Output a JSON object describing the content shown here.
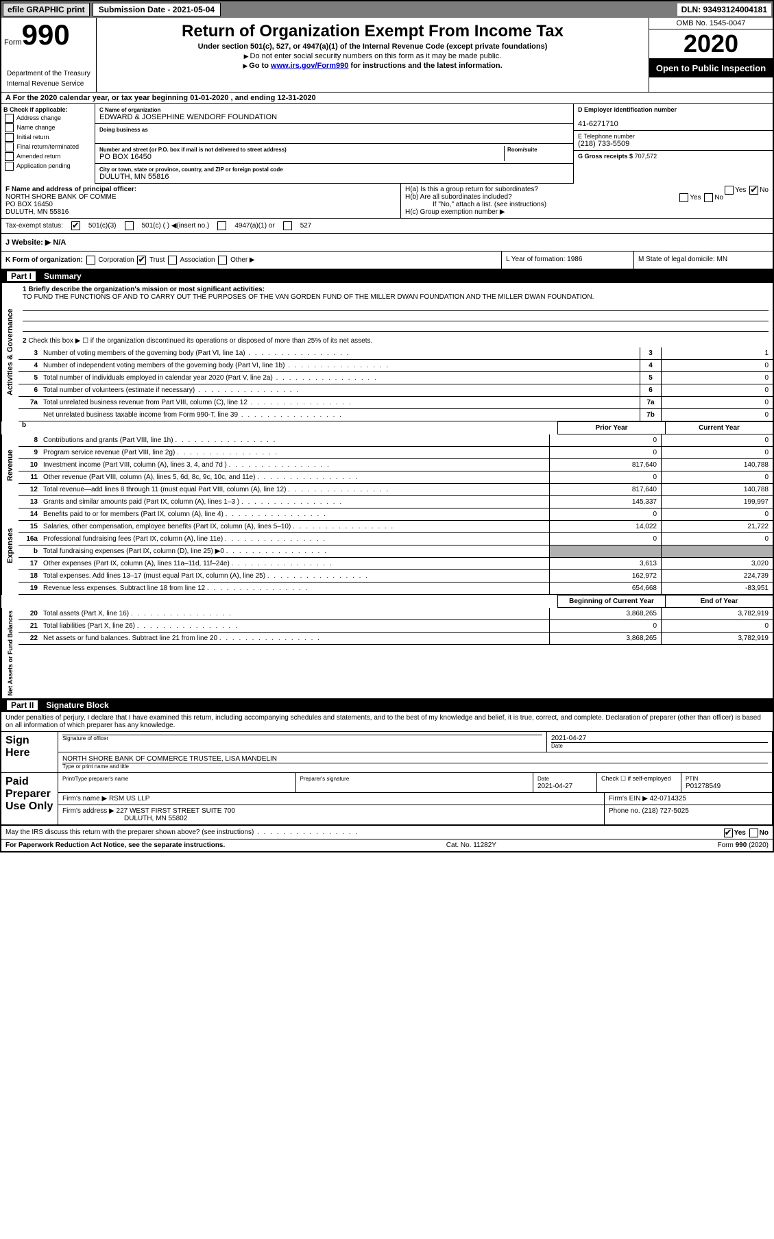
{
  "topbar": {
    "efile": "efile GRAPHIC print",
    "sub_label": "Submission Date - 2021-05-04",
    "dln": "DLN: 93493124004181"
  },
  "header": {
    "form_word": "Form",
    "form_num": "990",
    "title": "Return of Organization Exempt From Income Tax",
    "subtitle": "Under section 501(c), 527, or 4947(a)(1) of the Internal Revenue Code (except private foundations)",
    "note1": "Do not enter social security numbers on this form as it may be made public.",
    "note2_pre": "Go to ",
    "note2_link": "www.irs.gov/Form990",
    "note2_post": " for instructions and the latest information.",
    "omb": "OMB No. 1545-0047",
    "year": "2020",
    "oti": "Open to Public Inspection",
    "dept1": "Department of the Treasury",
    "dept2": "Internal Revenue Service"
  },
  "period": "For the 2020 calendar year, or tax year beginning 01-01-2020    , and ending 12-31-2020",
  "B": {
    "title": "B Check if applicable:",
    "opts": [
      "Address change",
      "Name change",
      "Initial return",
      "Final return/terminated",
      "Amended return",
      "Application pending"
    ]
  },
  "C": {
    "name_lbl": "C Name of organization",
    "name": "EDWARD & JOSEPHINE WENDORF FOUNDATION",
    "dba_lbl": "Doing business as",
    "addr_lbl": "Number and street (or P.O. box if mail is not delivered to street address)",
    "room_lbl": "Room/suite",
    "addr": "PO BOX 16450",
    "city_lbl": "City or town, state or province, country, and ZIP or foreign postal code",
    "city": "DULUTH, MN  55816"
  },
  "D": {
    "lbl": "D Employer identification number",
    "ein": "41-6271710",
    "tel_lbl": "E Telephone number",
    "tel": "(218) 733-5509",
    "gross_lbl": "G Gross receipts $",
    "gross": "707,572"
  },
  "F": {
    "lbl": "F  Name and address of principal officer:",
    "name": "NORTH SHORE BANK OF COMME",
    "addr": "PO BOX 16450",
    "city": "DULUTH, MN  55816"
  },
  "H": {
    "a": "H(a)  Is this a group return for subordinates?",
    "b": "H(b)  Are all subordinates included?",
    "b_note": "If \"No,\" attach a list. (see instructions)",
    "c": "H(c)  Group exemption number ▶"
  },
  "tax_exempt": {
    "lbl": "Tax-exempt status:",
    "c3": "501(c)(3)",
    "c": "501(c) (  ) ◀(insert no.)",
    "a1": "4947(a)(1) or",
    "s527": "527"
  },
  "J": {
    "lbl": "J   Website: ▶",
    "val": "N/A"
  },
  "K": {
    "lbl": "K Form of organization:",
    "corp": "Corporation",
    "trust": "Trust",
    "assoc": "Association",
    "other": "Other ▶",
    "L": "L Year of formation: 1986",
    "M": "M State of legal domicile: MN"
  },
  "part1": {
    "tag": "Part I",
    "title": "Summary"
  },
  "mission": {
    "lbl": "1   Briefly describe the organization's mission or most significant activities:",
    "text": "TO FUND THE FUNCTIONS OF AND TO CARRY OUT THE PURPOSES OF THE VAN GORDEN FUND OF THE MILLER DWAN FOUNDATION AND THE MILLER DWAN FOUNDATION."
  },
  "line2": "Check this box ▶ ☐  if the organization discontinued its operations or disposed of more than 25% of its net assets.",
  "gov_lines": [
    {
      "n": "3",
      "d": "Number of voting members of the governing body (Part VI, line 1a)",
      "b": "3",
      "v": "1"
    },
    {
      "n": "4",
      "d": "Number of independent voting members of the governing body (Part VI, line 1b)",
      "b": "4",
      "v": "0"
    },
    {
      "n": "5",
      "d": "Total number of individuals employed in calendar year 2020 (Part V, line 2a)",
      "b": "5",
      "v": "0"
    },
    {
      "n": "6",
      "d": "Total number of volunteers (estimate if necessary)",
      "b": "6",
      "v": "0"
    },
    {
      "n": "7a",
      "d": "Total unrelated business revenue from Part VIII, column (C), line 12",
      "b": "7a",
      "v": "0"
    },
    {
      "n": "",
      "d": "Net unrelated business taxable income from Form 990-T, line 39",
      "b": "7b",
      "v": "0"
    }
  ],
  "yearcols": {
    "prior": "Prior Year",
    "current": "Current Year"
  },
  "rev_lines": [
    {
      "n": "8",
      "d": "Contributions and grants (Part VIII, line 1h)",
      "p": "0",
      "c": "0"
    },
    {
      "n": "9",
      "d": "Program service revenue (Part VIII, line 2g)",
      "p": "0",
      "c": "0"
    },
    {
      "n": "10",
      "d": "Investment income (Part VIII, column (A), lines 3, 4, and 7d )",
      "p": "817,640",
      "c": "140,788"
    },
    {
      "n": "11",
      "d": "Other revenue (Part VIII, column (A), lines 5, 6d, 8c, 9c, 10c, and 11e)",
      "p": "0",
      "c": "0"
    },
    {
      "n": "12",
      "d": "Total revenue—add lines 8 through 11 (must equal Part VIII, column (A), line 12)",
      "p": "817,640",
      "c": "140,788"
    }
  ],
  "exp_lines": [
    {
      "n": "13",
      "d": "Grants and similar amounts paid (Part IX, column (A), lines 1–3 )",
      "p": "145,337",
      "c": "199,997"
    },
    {
      "n": "14",
      "d": "Benefits paid to or for members (Part IX, column (A), line 4)",
      "p": "0",
      "c": "0"
    },
    {
      "n": "15",
      "d": "Salaries, other compensation, employee benefits (Part IX, column (A), lines 5–10)",
      "p": "14,022",
      "c": "21,722"
    },
    {
      "n": "16a",
      "d": "Professional fundraising fees (Part IX, column (A), line 11e)",
      "p": "0",
      "c": "0"
    },
    {
      "n": "b",
      "d": "Total fundraising expenses (Part IX, column (D), line 25) ▶0",
      "p": "",
      "c": "",
      "shade": true
    },
    {
      "n": "17",
      "d": "Other expenses (Part IX, column (A), lines 11a–11d, 11f–24e)",
      "p": "3,613",
      "c": "3,020"
    },
    {
      "n": "18",
      "d": "Total expenses. Add lines 13–17 (must equal Part IX, column (A), line 25)",
      "p": "162,972",
      "c": "224,739"
    },
    {
      "n": "19",
      "d": "Revenue less expenses. Subtract line 18 from line 12",
      "p": "654,668",
      "c": "-83,951"
    }
  ],
  "na_cols": {
    "begin": "Beginning of Current Year",
    "end": "End of Year"
  },
  "na_lines": [
    {
      "n": "20",
      "d": "Total assets (Part X, line 16)",
      "p": "3,868,265",
      "c": "3,782,919"
    },
    {
      "n": "21",
      "d": "Total liabilities (Part X, line 26)",
      "p": "0",
      "c": "0"
    },
    {
      "n": "22",
      "d": "Net assets or fund balances. Subtract line 21 from line 20",
      "p": "3,868,265",
      "c": "3,782,919"
    }
  ],
  "part2": {
    "tag": "Part II",
    "title": "Signature Block"
  },
  "sig": {
    "penalty": "Under penalties of perjury, I declare that I have examined this return, including accompanying schedules and statements, and to the best of my knowledge and belief, it is true, correct, and complete. Declaration of preparer (other than officer) is based on all information of which preparer has any knowledge.",
    "sign_here": "Sign Here",
    "sig_officer": "Signature of officer",
    "date": "2021-04-27",
    "date_lbl": "Date",
    "name_title": "NORTH SHORE BANK OF COMMERCE TRUSTEE, LISA MANDELIN",
    "name_title_lbl": "Type or print name and title",
    "paid": "Paid Preparer Use Only",
    "prep_name_lbl": "Print/Type preparer's name",
    "prep_sig_lbl": "Preparer's signature",
    "prep_date": "2021-04-27",
    "check_lbl": "Check ☐ if self-employed",
    "ptin_lbl": "PTIN",
    "ptin": "P01278549",
    "firm_name_lbl": "Firm's name   ▶",
    "firm_name": "RSM US LLP",
    "firm_ein_lbl": "Firm's EIN ▶",
    "firm_ein": "42-0714325",
    "firm_addr_lbl": "Firm's address ▶",
    "firm_addr": "227 WEST FIRST STREET SUITE 700",
    "firm_city": "DULUTH, MN  55802",
    "phone_lbl": "Phone no.",
    "phone": "(218) 727-5025",
    "discuss": "May the IRS discuss this return with the preparer shown above? (see instructions)",
    "yes": "Yes",
    "no": "No"
  },
  "footer": {
    "left": "For Paperwork Reduction Act Notice, see the separate instructions.",
    "mid": "Cat. No. 11282Y",
    "right": "Form 990 (2020)"
  },
  "sidelabels": {
    "gov": "Activities & Governance",
    "rev": "Revenue",
    "exp": "Expenses",
    "na": "Net Assets or Fund Balances"
  }
}
